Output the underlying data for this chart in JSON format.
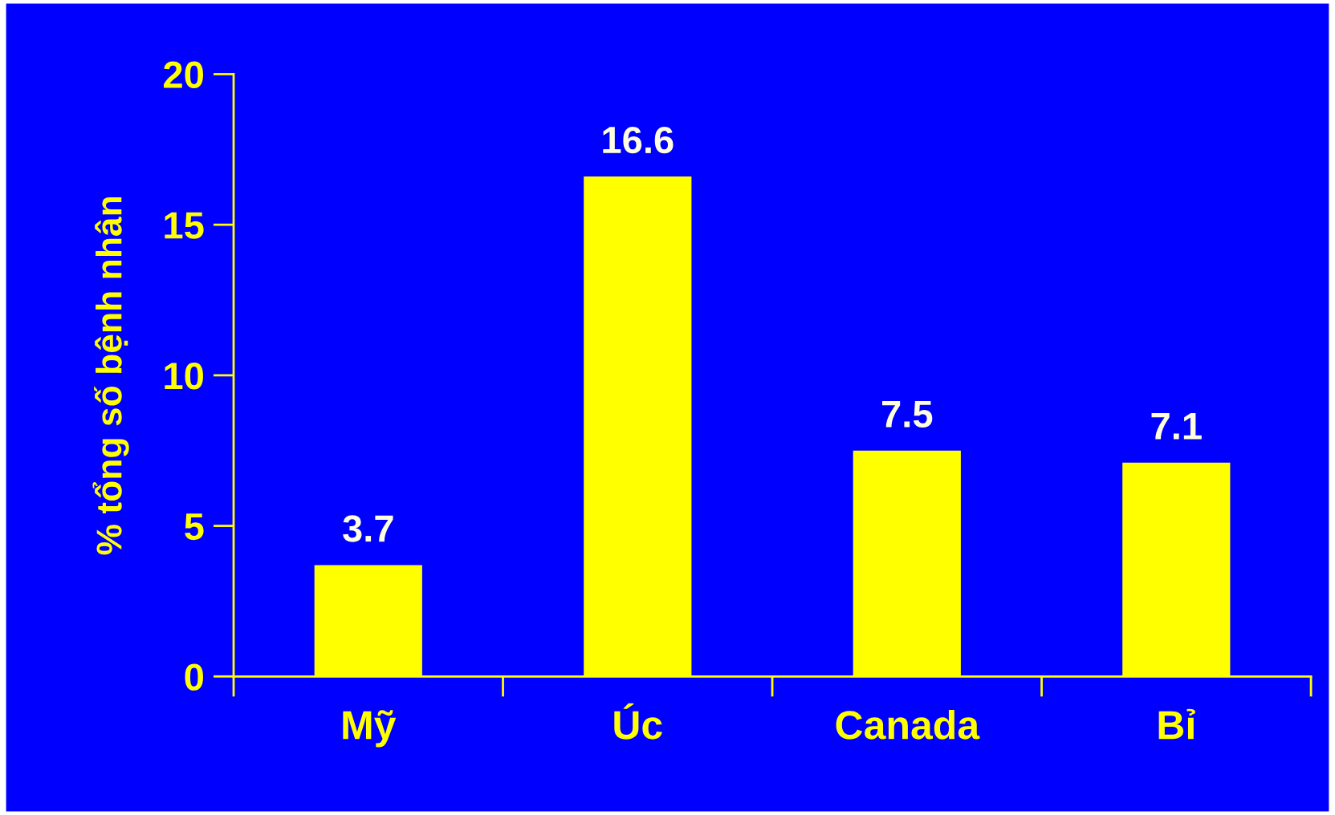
{
  "chart_data": {
    "type": "bar",
    "ylabel": "% tổng số bệnh nhân",
    "categories": [
      "Mỹ",
      "Úc",
      "Canada",
      "Bỉ"
    ],
    "values": [
      3.7,
      16.6,
      7.5,
      7.1
    ],
    "color": "#ffff00",
    "ylim": [
      0,
      20
    ],
    "yticks": [
      0,
      5,
      10,
      15,
      20
    ],
    "data_labels": true,
    "grid": false,
    "legend": false
  }
}
